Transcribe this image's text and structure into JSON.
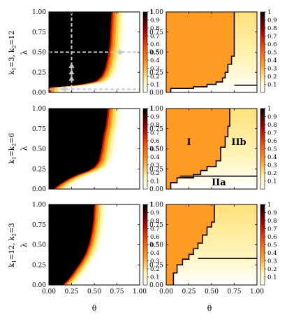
{
  "figure": {
    "xlabel": "θ",
    "ylabel": "λ",
    "row_labels": [
      [
        "k",
        "1",
        "=3, k",
        "2",
        "=12"
      ],
      [
        "k",
        "1",
        "=k",
        "2",
        "=6"
      ],
      [
        "k",
        "1",
        "=12, k",
        "2",
        "=3"
      ]
    ],
    "region_labels": [
      "I",
      "IIb",
      "IIa"
    ]
  },
  "chart_data": [
    {
      "type": "heatmap",
      "panel": "row1-left",
      "row_label": "k1=3, k2=12",
      "xlabel": "",
      "ylabel": "λ",
      "xlim": [
        0,
        1
      ],
      "ylim": [
        0,
        1
      ],
      "x_ticks": [
        "0.00",
        "0.25",
        "0.50",
        "0.75",
        "1.00"
      ],
      "y_ticks": [
        "0.00",
        "0.25",
        "0.50",
        "0.75",
        "1.00"
      ],
      "colorbar": {
        "min": 0,
        "max": 1,
        "ticks": [
          "0.1",
          "0.2",
          "0.3",
          "0.4",
          "0.5",
          "0.6",
          "0.7",
          "0.8",
          "0.9",
          "1"
        ]
      },
      "boundary": [
        [
          0.0,
          0.06
        ],
        [
          0.15,
          0.07
        ],
        [
          0.3,
          0.09
        ],
        [
          0.42,
          0.11
        ],
        [
          0.52,
          0.14
        ],
        [
          0.58,
          0.2
        ],
        [
          0.62,
          0.3
        ],
        [
          0.65,
          0.45
        ],
        [
          0.67,
          0.6
        ],
        [
          0.68,
          0.8
        ],
        [
          0.69,
          1.0
        ]
      ],
      "transition_width": 0.06,
      "arrows": {
        "vertical_x": 0.25,
        "horizontal_y": 0.5,
        "bottom_y": 0.04,
        "color": "#c8c8c8"
      }
    },
    {
      "type": "heatmap",
      "panel": "row1-right",
      "xlim": [
        0,
        1
      ],
      "ylim": [
        0,
        1
      ],
      "x_ticks": [
        "0.00",
        "0.25",
        "0.50",
        "0.75",
        "1.00"
      ],
      "y_ticks": [
        "0.00",
        "0.25",
        "0.50",
        "0.75",
        "1.00"
      ],
      "colorbar": {
        "min": 0,
        "max": 1,
        "ticks": [
          "0.1",
          "0.2",
          "0.3",
          "0.4",
          "0.5",
          "0.6",
          "0.7",
          "0.8",
          "0.9",
          "1"
        ]
      },
      "orange_value": 0.33,
      "boundary_step": [
        [
          0.05,
          0
        ],
        [
          0.05,
          0.05
        ],
        [
          0.3,
          0.05
        ],
        [
          0.3,
          0.07
        ],
        [
          0.45,
          0.07
        ],
        [
          0.45,
          0.1
        ],
        [
          0.55,
          0.1
        ],
        [
          0.55,
          0.13
        ],
        [
          0.62,
          0.13
        ],
        [
          0.62,
          0.18
        ],
        [
          0.65,
          0.18
        ],
        [
          0.65,
          0.25
        ],
        [
          0.68,
          0.25
        ],
        [
          0.68,
          0.35
        ],
        [
          0.72,
          0.35
        ],
        [
          0.72,
          0.45
        ],
        [
          0.75,
          0.45
        ],
        [
          0.75,
          1.0
        ]
      ],
      "divider_line": [
        [
          0.75,
          0.09
        ],
        [
          1.0,
          0.09
        ]
      ]
    },
    {
      "type": "heatmap",
      "panel": "row2-left",
      "row_label": "k1=k2=6",
      "ylabel": "λ",
      "xlim": [
        0,
        1
      ],
      "ylim": [
        0,
        1
      ],
      "x_ticks": [
        "0.00",
        "0.25",
        "0.50",
        "0.75",
        "1.00"
      ],
      "y_ticks": [
        "0.00",
        "0.25",
        "0.50",
        "0.75",
        "1.00"
      ],
      "colorbar": {
        "min": 0,
        "max": 1,
        "ticks": [
          "0.1",
          "0.2",
          "0.3",
          "0.4",
          "0.5",
          "0.6",
          "0.7",
          "0.8",
          "0.9",
          "1"
        ]
      },
      "boundary": [
        [
          0.05,
          0.0
        ],
        [
          0.12,
          0.06
        ],
        [
          0.22,
          0.13
        ],
        [
          0.32,
          0.18
        ],
        [
          0.42,
          0.22
        ],
        [
          0.5,
          0.27
        ],
        [
          0.55,
          0.35
        ],
        [
          0.58,
          0.5
        ],
        [
          0.6,
          0.65
        ],
        [
          0.63,
          0.8
        ],
        [
          0.65,
          1.0
        ]
      ],
      "transition_width": 0.06
    },
    {
      "type": "heatmap",
      "panel": "row2-right",
      "xlim": [
        0,
        1
      ],
      "ylim": [
        0,
        1
      ],
      "x_ticks": [
        "0.00",
        "0.25",
        "0.50",
        "0.75",
        "1.00"
      ],
      "y_ticks": [
        "0.00",
        "0.25",
        "0.50",
        "0.75",
        "1.00"
      ],
      "colorbar": {
        "min": 0,
        "max": 1,
        "ticks": [
          "0.1",
          "0.2",
          "0.3",
          "0.4",
          "0.5",
          "0.6",
          "0.7",
          "0.8",
          "0.9",
          "1"
        ]
      },
      "orange_value": 0.33,
      "regions": [
        {
          "label": "I",
          "x": 0.25,
          "y": 0.55
        },
        {
          "label": "IIb",
          "x": 0.8,
          "y": 0.55
        },
        {
          "label": "IIa",
          "x": 0.58,
          "y": 0.05
        }
      ],
      "boundary_step": [
        [
          0.05,
          0
        ],
        [
          0.05,
          0.08
        ],
        [
          0.12,
          0.08
        ],
        [
          0.12,
          0.14
        ],
        [
          0.3,
          0.14
        ],
        [
          0.3,
          0.18
        ],
        [
          0.38,
          0.18
        ],
        [
          0.38,
          0.23
        ],
        [
          0.45,
          0.23
        ],
        [
          0.45,
          0.28
        ],
        [
          0.55,
          0.28
        ],
        [
          0.55,
          0.35
        ],
        [
          0.6,
          0.35
        ],
        [
          0.6,
          0.52
        ],
        [
          0.65,
          0.52
        ],
        [
          0.65,
          0.65
        ],
        [
          0.68,
          0.65
        ],
        [
          0.68,
          0.78
        ],
        [
          0.7,
          0.78
        ],
        [
          0.7,
          1.0
        ]
      ],
      "divider_line": [
        [
          0.15,
          0.16
        ],
        [
          1.0,
          0.16
        ]
      ]
    },
    {
      "type": "heatmap",
      "panel": "row3-left",
      "row_label": "k1=12, k2=3",
      "xlabel": "θ",
      "ylabel": "λ",
      "xlim": [
        0,
        1
      ],
      "ylim": [
        0,
        1
      ],
      "x_ticks": [
        "0.00",
        "0.25",
        "0.50",
        "0.75",
        "1.00"
      ],
      "y_ticks": [
        "0.00",
        "0.25",
        "0.50",
        "0.75",
        "1.00"
      ],
      "colorbar": {
        "min": 0,
        "max": 1,
        "ticks": [
          "0.1",
          "0.2",
          "0.3",
          "0.4",
          "0.5",
          "0.6",
          "0.7",
          "0.8",
          "0.9",
          "1"
        ]
      },
      "boundary": [
        [
          0.15,
          0.0
        ],
        [
          0.2,
          0.05
        ],
        [
          0.25,
          0.12
        ],
        [
          0.3,
          0.2
        ],
        [
          0.35,
          0.28
        ],
        [
          0.4,
          0.38
        ],
        [
          0.44,
          0.5
        ],
        [
          0.47,
          0.65
        ],
        [
          0.49,
          0.8
        ],
        [
          0.5,
          1.0
        ]
      ],
      "transition_width": 0.05
    },
    {
      "type": "heatmap",
      "panel": "row3-right",
      "xlabel": "θ",
      "xlim": [
        0,
        1
      ],
      "ylim": [
        0,
        1
      ],
      "x_ticks": [
        "0.00",
        "0.25",
        "0.50",
        "0.75",
        "1.00"
      ],
      "y_ticks": [
        "0.00",
        "0.25",
        "0.50",
        "0.75",
        "1.00"
      ],
      "colorbar": {
        "min": 0,
        "max": 1,
        "ticks": [
          "0.1",
          "0.2",
          "0.3",
          "0.4",
          "0.5",
          "0.6",
          "0.7",
          "0.8",
          "0.9",
          "1"
        ]
      },
      "orange_value": 0.33,
      "boundary_step": [
        [
          0.08,
          0
        ],
        [
          0.08,
          0.15
        ],
        [
          0.12,
          0.15
        ],
        [
          0.12,
          0.25
        ],
        [
          0.18,
          0.25
        ],
        [
          0.18,
          0.32
        ],
        [
          0.25,
          0.32
        ],
        [
          0.25,
          0.38
        ],
        [
          0.3,
          0.38
        ],
        [
          0.3,
          0.45
        ],
        [
          0.35,
          0.45
        ],
        [
          0.35,
          0.52
        ],
        [
          0.4,
          0.52
        ],
        [
          0.4,
          0.62
        ],
        [
          0.45,
          0.62
        ],
        [
          0.45,
          0.72
        ],
        [
          0.5,
          0.72
        ],
        [
          0.5,
          0.78
        ],
        [
          0.53,
          0.78
        ],
        [
          0.53,
          1.0
        ]
      ],
      "divider_line": [
        [
          0.35,
          0.33
        ],
        [
          1.0,
          0.33
        ]
      ]
    }
  ]
}
